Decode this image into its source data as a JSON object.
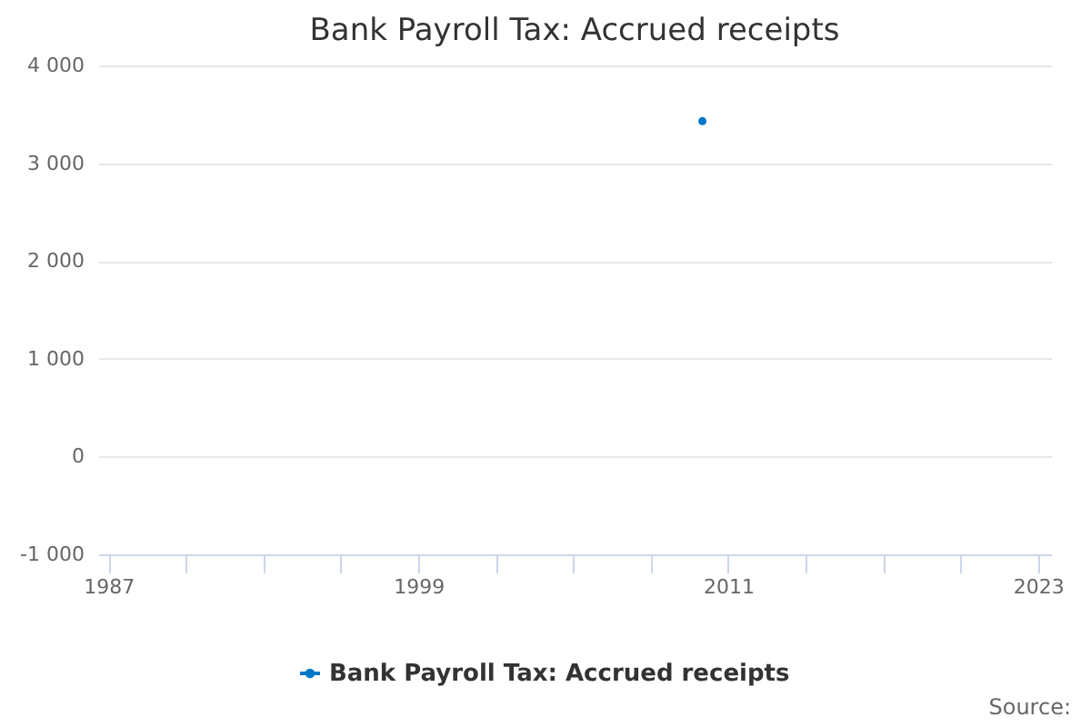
{
  "chart_data": {
    "type": "line",
    "title": "Bank Payroll Tax: Accrued receipts",
    "x": [
      2010
    ],
    "series": [
      {
        "name": "Bank Payroll Tax: Accrued receipts",
        "color": "#0077c8",
        "values": [
          3430
        ]
      }
    ],
    "xlim": [
      1986.6,
      2023.5
    ],
    "xticks": [
      {
        "value": 1987,
        "label": "1987"
      },
      {
        "value": 1990,
        "label": null
      },
      {
        "value": 1993,
        "label": null
      },
      {
        "value": 1996,
        "label": null
      },
      {
        "value": 1999,
        "label": "1999"
      },
      {
        "value": 2002,
        "label": null
      },
      {
        "value": 2005,
        "label": null
      },
      {
        "value": 2008,
        "label": null
      },
      {
        "value": 2011,
        "label": "2011"
      },
      {
        "value": 2014,
        "label": null
      },
      {
        "value": 2017,
        "label": null
      },
      {
        "value": 2020,
        "label": null
      },
      {
        "value": 2023,
        "label": "2023"
      }
    ],
    "ylim": [
      -1000,
      4000
    ],
    "yticks": [
      {
        "value": -1000,
        "label": "-1 000"
      },
      {
        "value": 0,
        "label": "0"
      },
      {
        "value": 1000,
        "label": "1 000"
      },
      {
        "value": 2000,
        "label": "2 000"
      },
      {
        "value": 3000,
        "label": "3 000"
      },
      {
        "value": 4000,
        "label": "4 000"
      }
    ],
    "grid": "y",
    "legend": "bottom",
    "marker": "circle",
    "line_style": "solid",
    "annotations": [
      "Source:"
    ]
  }
}
